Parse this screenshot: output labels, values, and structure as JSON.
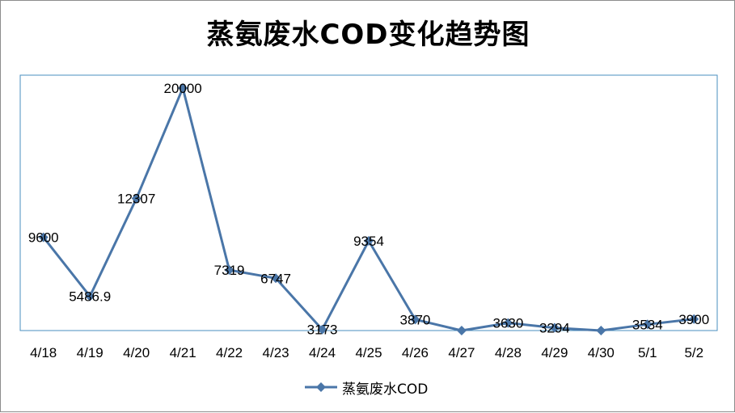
{
  "chart_data": {
    "type": "line",
    "title": "蒸氨废水COD变化趋势图",
    "categories": [
      "4/18",
      "4/19",
      "4/20",
      "4/21",
      "4/22",
      "4/23",
      "4/24",
      "4/25",
      "4/26",
      "4/27",
      "4/28",
      "4/29",
      "4/30",
      "5/1",
      "5/2"
    ],
    "series": [
      {
        "name": "蒸氨废水COD",
        "values": [
          9600,
          5486.9,
          12307,
          20000,
          7319,
          6747,
          3173,
          9354,
          3870,
          3100,
          3630,
          3294,
          3100,
          3534,
          3900
        ],
        "labels": [
          "9600",
          "5486.9",
          "12307",
          "20000",
          "7319",
          "6747",
          "3173",
          "9354",
          "3870",
          "",
          "3630",
          "3294",
          "",
          "3534",
          "3900"
        ],
        "color": "#4a76a8",
        "marker": "diamond"
      }
    ],
    "ylim": [
      3100,
      20000
    ],
    "grid": false,
    "legend": "bottom",
    "plot_border_color": "#4a8fbf"
  }
}
